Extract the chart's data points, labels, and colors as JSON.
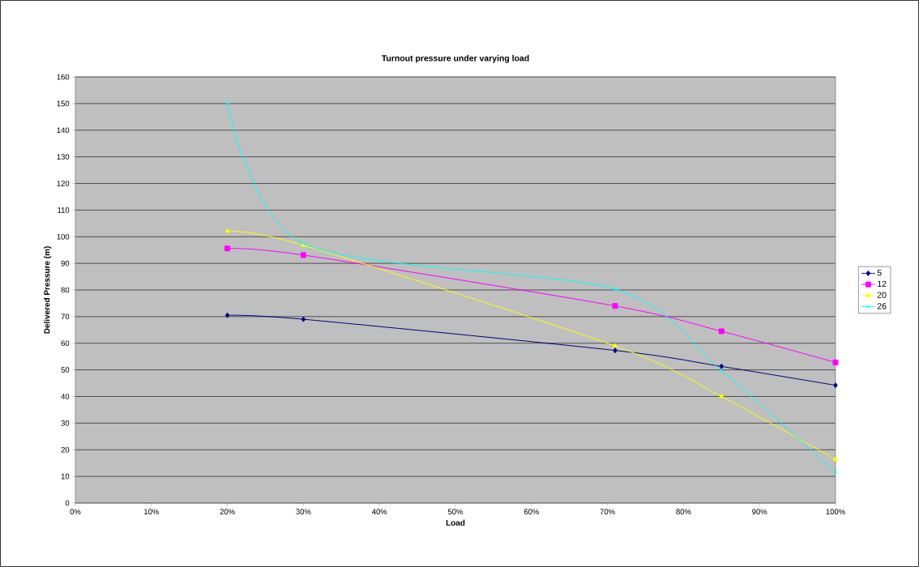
{
  "chart_data": {
    "type": "line",
    "title": "Turnout pressure under varying load",
    "xlabel": "Load",
    "ylabel": "Delivered Pressure (m)",
    "x": [
      20,
      30,
      71,
      85,
      100
    ],
    "series": [
      {
        "name": "5",
        "color": "#000080",
        "marker": "diamond",
        "values": [
          70.5,
          69,
          57.3,
          51.3,
          44.2
        ]
      },
      {
        "name": "12",
        "color": "#ff00ff",
        "marker": "square",
        "values": [
          95.6,
          93.1,
          74,
          64.5,
          52.8
        ]
      },
      {
        "name": "20",
        "color": "#ffff00",
        "marker": "triangle",
        "values": [
          102.1,
          96.8,
          59,
          40,
          16.4
        ]
      },
      {
        "name": "26",
        "color": "#00ffff",
        "marker": "cross",
        "values": [
          150.4,
          97.5,
          80.3,
          49.7,
          11.6
        ]
      }
    ],
    "xlim": [
      0,
      100
    ],
    "xticks": [
      {
        "value": 0,
        "label": "0%"
      },
      {
        "value": 10,
        "label": "10%"
      },
      {
        "value": 20,
        "label": "20%"
      },
      {
        "value": 30,
        "label": "30%"
      },
      {
        "value": 40,
        "label": "40%"
      },
      {
        "value": 50,
        "label": "50%"
      },
      {
        "value": 60,
        "label": "60%"
      },
      {
        "value": 70,
        "label": "70%"
      },
      {
        "value": 80,
        "label": "80%"
      },
      {
        "value": 90,
        "label": "90%"
      },
      {
        "value": 100,
        "label": "100%"
      }
    ],
    "ylim": [
      0,
      160
    ],
    "yticks": [
      0,
      10,
      20,
      30,
      40,
      50,
      60,
      70,
      80,
      90,
      100,
      110,
      120,
      130,
      140,
      150,
      160
    ],
    "grid": "y",
    "legend": "right",
    "line_style": "solid"
  }
}
